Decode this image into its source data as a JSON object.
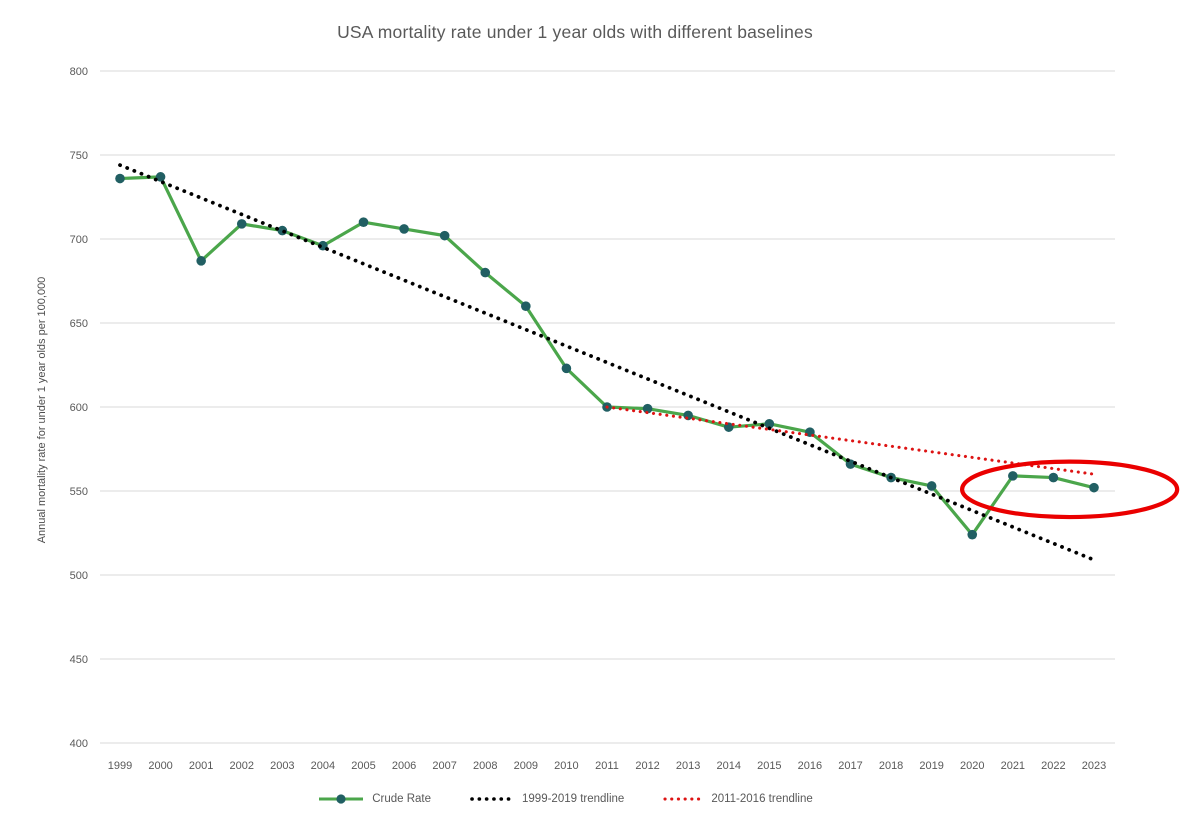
{
  "chart_data": {
    "type": "line",
    "title": "USA mortality rate under 1 year olds with different baselines",
    "xlabel": "",
    "ylabel": "Annual mortality rate for under 1 year olds per 100,000",
    "categories": [
      1999,
      2000,
      2001,
      2002,
      2003,
      2004,
      2005,
      2006,
      2007,
      2008,
      2009,
      2010,
      2011,
      2012,
      2013,
      2014,
      2015,
      2016,
      2017,
      2018,
      2019,
      2020,
      2021,
      2022,
      2023
    ],
    "series": [
      {
        "name": "Crude Rate",
        "line_color": "#4ba64b",
        "marker_color": "#215f63",
        "values": [
          736,
          737,
          687,
          709,
          705,
          696,
          710,
          706,
          702,
          680,
          660,
          623,
          600,
          599,
          595,
          588,
          590,
          585,
          566,
          558,
          553,
          524,
          559,
          558,
          552
        ]
      }
    ],
    "trendlines": [
      {
        "name": "1999-2019 trendline",
        "fit_range": "1999-2019",
        "style": "dotted",
        "color": "#000000",
        "draw_from_year": 1999,
        "draw_to_year": 2023,
        "value_at_start": 744,
        "value_at_end": 509
      },
      {
        "name": "2011-2016 trendline",
        "fit_range": "2011-2016",
        "style": "dotted",
        "color": "#dd1414",
        "draw_from_year": 2011,
        "draw_to_year": 2023,
        "value_at_start": 600,
        "value_at_end": 560
      }
    ],
    "annotation": {
      "type": "ellipse",
      "color": "#ea0000",
      "highlights": "2021-2023 data points",
      "center_year": 2022.4,
      "center_value": 551,
      "radius_years": 2.65,
      "radius_value": 16.5
    },
    "yticks": [
      400,
      450,
      500,
      550,
      600,
      650,
      700,
      750,
      800
    ],
    "ylim": [
      400,
      800
    ],
    "grid": "horizontal",
    "legend_position": "bottom"
  }
}
